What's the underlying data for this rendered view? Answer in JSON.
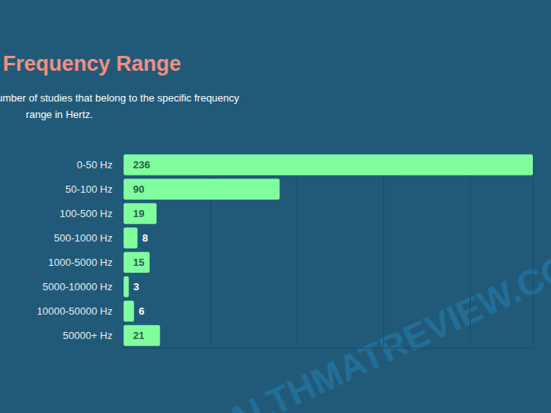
{
  "chart_data": {
    "type": "bar",
    "orientation": "horizontal",
    "title": "PEMF Frequency Range",
    "subtitle": "This graph illustrates the number of studies that belong to the specific frequency range in Hertz.",
    "annotations": [
      "WWW.HEALTHMATREVIEW.COM"
    ],
    "categories": [
      "0-50 Hz",
      "50-100 Hz",
      "100-500 Hz",
      "500-1000 Hz",
      "1000-5000 Hz",
      "5000-10000 Hz",
      "10000-50000 Hz",
      "50000+ Hz"
    ],
    "values": [
      236,
      90,
      19,
      8,
      15,
      3,
      6,
      21
    ],
    "color": "#80fd9d",
    "xlim": [
      0,
      236
    ],
    "xticks": [
      0,
      50,
      100,
      150,
      200
    ],
    "grid": true,
    "data_labels": true,
    "tick_labels": "y"
  }
}
